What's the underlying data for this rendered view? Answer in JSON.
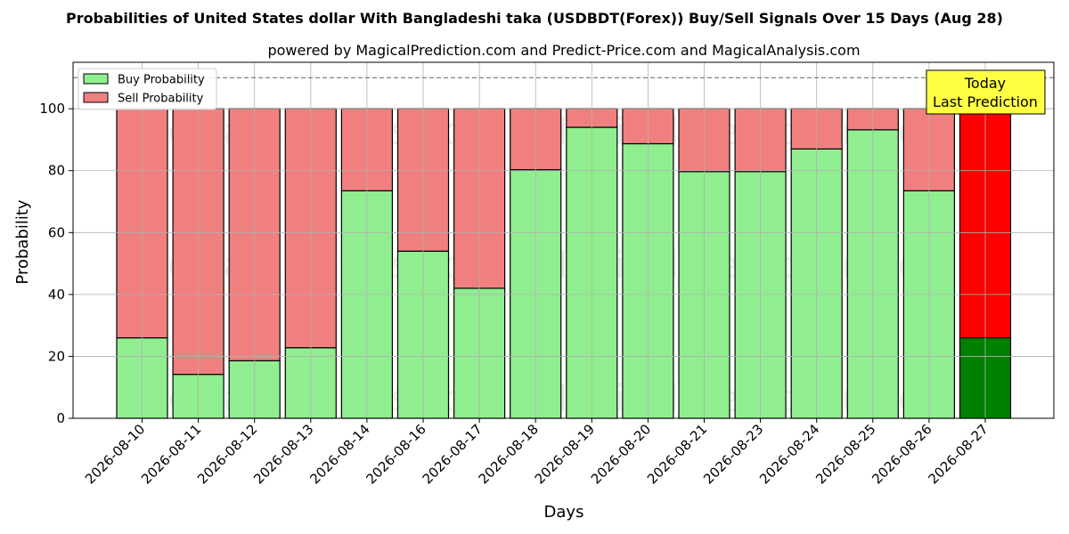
{
  "chart_data": {
    "type": "bar",
    "stacked": true,
    "title": "Probabilities of United States dollar With Bangladeshi taka (USDBDT(Forex)) Buy/Sell Signals Over 15 Days (Aug 28)",
    "subtitle": "powered by MagicalPrediction.com and Predict-Price.com and MagicalAnalysis.com",
    "xlabel": "Days",
    "ylabel": "Probability",
    "ylim": [
      0,
      115
    ],
    "yticks": [
      0,
      20,
      40,
      60,
      80,
      100
    ],
    "grid": true,
    "legend_position": "top-left",
    "reference_line": 110,
    "categories": [
      "2026-08-10",
      "2026-08-11",
      "2026-08-12",
      "2026-08-13",
      "2026-08-14",
      "2026-08-16",
      "2026-08-17",
      "2026-08-18",
      "2026-08-19",
      "2026-08-20",
      "2026-08-21",
      "2026-08-23",
      "2026-08-24",
      "2026-08-25",
      "2026-08-26",
      "2026-08-27"
    ],
    "series": [
      {
        "name": "Buy Probability",
        "color": "#90ee90",
        "highlight_color": "#008000",
        "values": [
          26,
          14.2,
          18.6,
          22.8,
          73.5,
          54,
          42,
          80.3,
          94,
          88.7,
          79.7,
          79.7,
          87,
          93.2,
          73.5,
          26
        ]
      },
      {
        "name": "Sell Probability",
        "color": "#f08080",
        "highlight_color": "#ff0000",
        "values": [
          74,
          85.8,
          81.4,
          77.2,
          26.5,
          46,
          58,
          19.7,
          6,
          11.3,
          20.3,
          20.3,
          13,
          6.8,
          26.5,
          74
        ]
      }
    ],
    "highlight_index": 15,
    "annotation": {
      "line1": "Today",
      "line2": "Last Prediction",
      "background": "#ffff44"
    },
    "watermarks": [
      "MagicalAnalysis.com",
      "MagicalPrediction.com"
    ]
  }
}
